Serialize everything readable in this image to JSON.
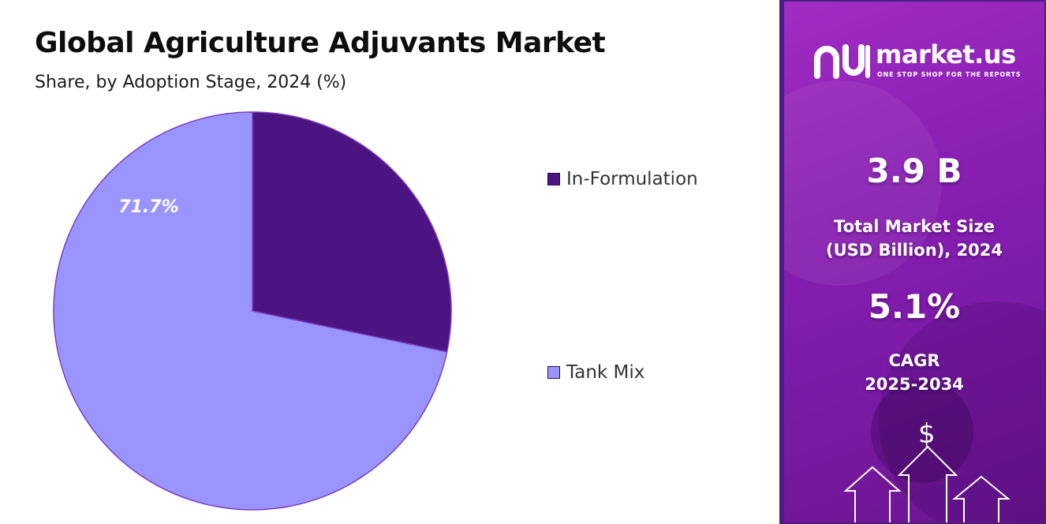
{
  "chart_data": {
    "type": "pie",
    "title": "Global Agriculture Adjuvants Market",
    "subtitle": "Share, by Adoption Stage, 2024 (%)",
    "slices": [
      {
        "name": "In-Formulation",
        "value": 28.3,
        "color": "#4b1480",
        "label": ""
      },
      {
        "name": "Tank Mix",
        "value": 71.7,
        "color": "#9a95fe",
        "label": "71.7%"
      }
    ],
    "legend_position": "right"
  },
  "brand": {
    "name": "market.us",
    "tagline": "ONE STOP SHOP FOR THE REPORTS"
  },
  "stats": {
    "market_size_value": "3.9 B",
    "market_size_label": "Total Market Size\n(USD Billion), 2024",
    "cagr_value": "5.1%",
    "cagr_label": "CAGR\n2025-2034"
  },
  "icons": {
    "dollar": "$",
    "arrows": "up-arrows-icon"
  },
  "colors": {
    "accent_dark": "#4b1d7e",
    "panel_gradient_start": "#a02cc4",
    "panel_gradient_end": "#6b158f"
  }
}
